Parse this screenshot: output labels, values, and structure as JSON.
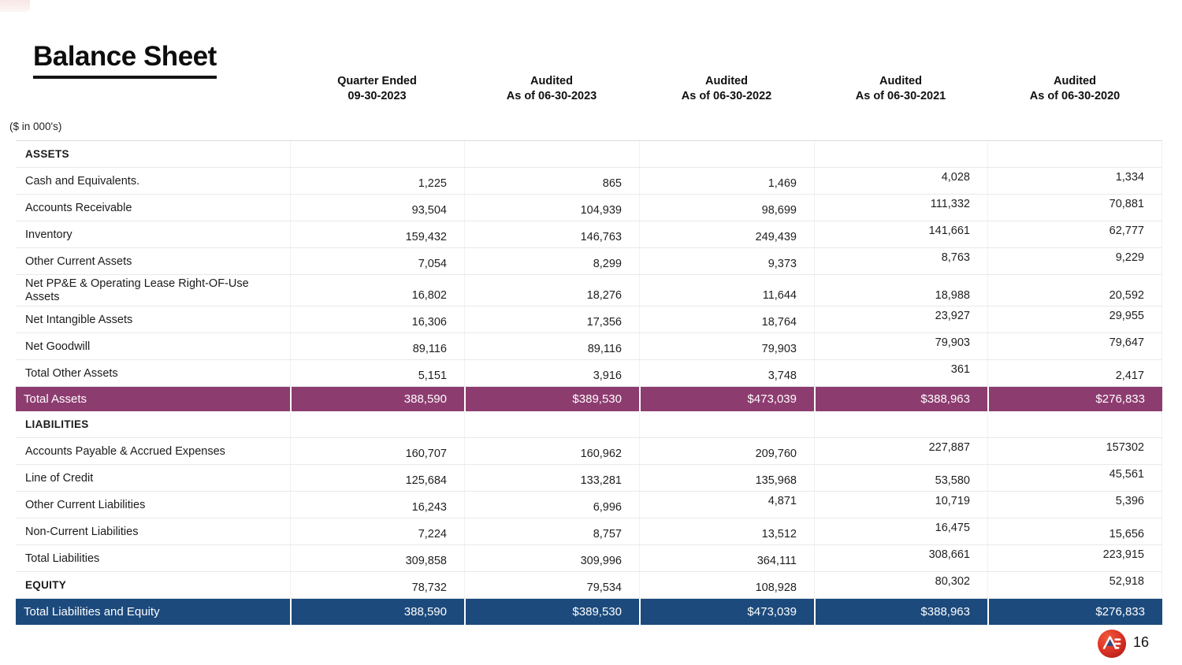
{
  "page": {
    "title": "Balance Sheet",
    "units_note": "($ in 000's)",
    "page_number": "16"
  },
  "colors": {
    "total_assets_row": "#8d3c70",
    "total_liabilities_equity_row": "#1c4a7c",
    "logo_red": "#d93125",
    "logo_accent_blue": "#2c4e86"
  },
  "table": {
    "column_headers": [
      {
        "line1": "Quarter Ended",
        "line2": "09-30-2023"
      },
      {
        "line1": "Audited",
        "line2": "As of 06-30-2023"
      },
      {
        "line1": "Audited",
        "line2": "As of 06-30-2022"
      },
      {
        "line1": "Audited",
        "line2": "As of 06-30-2021"
      },
      {
        "line1": "Audited",
        "line2": "As of 06-30-2020"
      }
    ],
    "rows": [
      {
        "type": "section",
        "label": "ASSETS",
        "values": [
          "",
          "",
          "",
          "",
          ""
        ],
        "raised": [
          0,
          0,
          0,
          0,
          0
        ]
      },
      {
        "type": "item",
        "label": "Cash and Equivalents.",
        "values": [
          "1,225",
          "865",
          "1,469",
          "4,028",
          "1,334"
        ],
        "raised": [
          0,
          0,
          0,
          1,
          1
        ]
      },
      {
        "type": "item",
        "label": "Accounts Receivable",
        "values": [
          "93,504",
          "104,939",
          "98,699",
          "111,332",
          "70,881"
        ],
        "raised": [
          0,
          0,
          0,
          1,
          1
        ]
      },
      {
        "type": "item",
        "label": "Inventory",
        "values": [
          "159,432",
          "146,763",
          "249,439",
          "141,661",
          "62,777"
        ],
        "raised": [
          0,
          0,
          0,
          1,
          1
        ]
      },
      {
        "type": "item",
        "label": "Other Current Assets",
        "values": [
          "7,054",
          "8,299",
          "9,373",
          "8,763",
          "9,229"
        ],
        "raised": [
          0,
          0,
          0,
          1,
          1
        ]
      },
      {
        "type": "item",
        "tall": true,
        "label": "Net PP&E & Operating Lease Right-OF-Use Assets",
        "values": [
          "16,802",
          "18,276",
          "11,644",
          "18,988",
          "20,592"
        ],
        "raised": [
          0,
          0,
          0,
          0,
          0
        ]
      },
      {
        "type": "item",
        "label": "Net Intangible Assets",
        "values": [
          "16,306",
          "17,356",
          "18,764",
          "23,927",
          "29,955"
        ],
        "raised": [
          0,
          0,
          0,
          1,
          1
        ]
      },
      {
        "type": "item",
        "label": "Net Goodwill",
        "values": [
          "89,116",
          "89,116",
          "79,903",
          "79,903",
          "79,647"
        ],
        "raised": [
          0,
          0,
          0,
          1,
          1
        ]
      },
      {
        "type": "item",
        "label": "Total Other Assets",
        "values": [
          "5,151",
          "3,916",
          "3,748",
          "361",
          "2,417"
        ],
        "raised": [
          0,
          0,
          0,
          1,
          0
        ]
      },
      {
        "type": "total-purple",
        "label": "Total Assets",
        "values": [
          "388,590",
          "$389,530",
          "$473,039",
          "$388,963",
          "$276,833"
        ],
        "raised": [
          0,
          0,
          0,
          0,
          0
        ]
      },
      {
        "type": "section",
        "label": "LIABILITIES",
        "values": [
          "",
          "",
          "",
          "",
          ""
        ],
        "raised": [
          0,
          0,
          0,
          0,
          0
        ]
      },
      {
        "type": "item",
        "label": "Accounts Payable & Accrued Expenses",
        "values": [
          "160,707",
          "160,962",
          "209,760",
          "227,887",
          "157302"
        ],
        "raised": [
          0,
          0,
          0,
          1,
          1
        ]
      },
      {
        "type": "item",
        "label": "Line of Credit",
        "values": [
          "125,684",
          "133,281",
          "135,968",
          "53,580",
          "45,561"
        ],
        "raised": [
          0,
          0,
          0,
          0,
          1
        ]
      },
      {
        "type": "item",
        "label": "Other Current Liabilities",
        "values": [
          "16,243",
          "6,996",
          "4,871",
          "10,719",
          "5,396"
        ],
        "raised": [
          0,
          0,
          1,
          1,
          1
        ]
      },
      {
        "type": "item",
        "label": "Non-Current Liabilities",
        "values": [
          "7,224",
          "8,757",
          "13,512",
          "16,475",
          "15,656"
        ],
        "raised": [
          0,
          0,
          0,
          1,
          0
        ]
      },
      {
        "type": "item",
        "label": "Total Liabilities",
        "values": [
          "309,858",
          "309,996",
          "364,111",
          "308,661",
          "223,915"
        ],
        "raised": [
          0,
          0,
          0,
          1,
          1
        ]
      },
      {
        "type": "section",
        "label": "EQUITY",
        "values": [
          "78,732",
          "79,534",
          "108,928",
          "80,302",
          "52,918"
        ],
        "raised": [
          0,
          0,
          0,
          1,
          1
        ]
      },
      {
        "type": "total-blue",
        "label": "Total Liabilities and Equity",
        "values": [
          "388,590",
          "$389,530",
          "$473,039",
          "$388,963",
          "$276,833"
        ],
        "raised": [
          0,
          0,
          0,
          0,
          0
        ]
      }
    ]
  }
}
